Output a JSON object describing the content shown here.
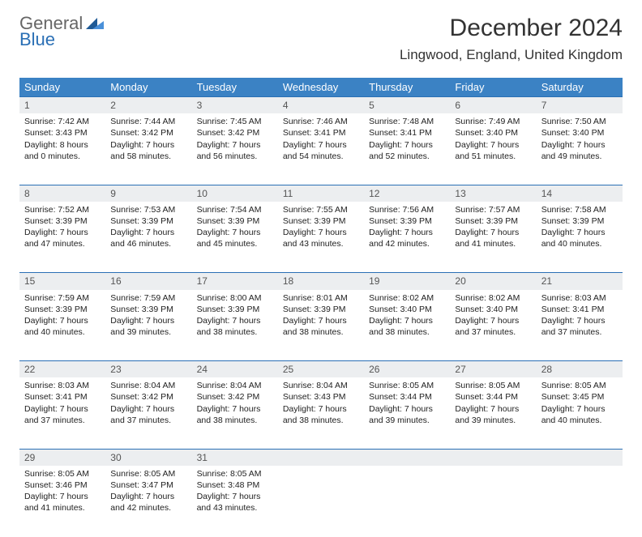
{
  "logo": {
    "word1": "General",
    "word2": "Blue"
  },
  "title": "December 2024",
  "location": "Lingwood, England, United Kingdom",
  "columns": [
    "Sunday",
    "Monday",
    "Tuesday",
    "Wednesday",
    "Thursday",
    "Friday",
    "Saturday"
  ],
  "colors": {
    "header_bg": "#3b82c4",
    "header_text": "#ffffff",
    "rule": "#2a6fb5",
    "daynum_bg": "#eceef0",
    "logo_gray": "#666666",
    "logo_blue": "#2a6fb5",
    "logo_tri_dark": "#1f5a96",
    "logo_tri_light": "#4a90d9"
  },
  "typography": {
    "title_fontsize": 30,
    "location_fontsize": 17,
    "colhead_fontsize": 13,
    "daynum_fontsize": 12,
    "body_fontsize": 10.5
  },
  "weeks": [
    [
      {
        "n": "1",
        "sr": "Sunrise: 7:42 AM",
        "ss": "Sunset: 3:43 PM",
        "d1": "Daylight: 8 hours",
        "d2": "and 0 minutes."
      },
      {
        "n": "2",
        "sr": "Sunrise: 7:44 AM",
        "ss": "Sunset: 3:42 PM",
        "d1": "Daylight: 7 hours",
        "d2": "and 58 minutes."
      },
      {
        "n": "3",
        "sr": "Sunrise: 7:45 AM",
        "ss": "Sunset: 3:42 PM",
        "d1": "Daylight: 7 hours",
        "d2": "and 56 minutes."
      },
      {
        "n": "4",
        "sr": "Sunrise: 7:46 AM",
        "ss": "Sunset: 3:41 PM",
        "d1": "Daylight: 7 hours",
        "d2": "and 54 minutes."
      },
      {
        "n": "5",
        "sr": "Sunrise: 7:48 AM",
        "ss": "Sunset: 3:41 PM",
        "d1": "Daylight: 7 hours",
        "d2": "and 52 minutes."
      },
      {
        "n": "6",
        "sr": "Sunrise: 7:49 AM",
        "ss": "Sunset: 3:40 PM",
        "d1": "Daylight: 7 hours",
        "d2": "and 51 minutes."
      },
      {
        "n": "7",
        "sr": "Sunrise: 7:50 AM",
        "ss": "Sunset: 3:40 PM",
        "d1": "Daylight: 7 hours",
        "d2": "and 49 minutes."
      }
    ],
    [
      {
        "n": "8",
        "sr": "Sunrise: 7:52 AM",
        "ss": "Sunset: 3:39 PM",
        "d1": "Daylight: 7 hours",
        "d2": "and 47 minutes."
      },
      {
        "n": "9",
        "sr": "Sunrise: 7:53 AM",
        "ss": "Sunset: 3:39 PM",
        "d1": "Daylight: 7 hours",
        "d2": "and 46 minutes."
      },
      {
        "n": "10",
        "sr": "Sunrise: 7:54 AM",
        "ss": "Sunset: 3:39 PM",
        "d1": "Daylight: 7 hours",
        "d2": "and 45 minutes."
      },
      {
        "n": "11",
        "sr": "Sunrise: 7:55 AM",
        "ss": "Sunset: 3:39 PM",
        "d1": "Daylight: 7 hours",
        "d2": "and 43 minutes."
      },
      {
        "n": "12",
        "sr": "Sunrise: 7:56 AM",
        "ss": "Sunset: 3:39 PM",
        "d1": "Daylight: 7 hours",
        "d2": "and 42 minutes."
      },
      {
        "n": "13",
        "sr": "Sunrise: 7:57 AM",
        "ss": "Sunset: 3:39 PM",
        "d1": "Daylight: 7 hours",
        "d2": "and 41 minutes."
      },
      {
        "n": "14",
        "sr": "Sunrise: 7:58 AM",
        "ss": "Sunset: 3:39 PM",
        "d1": "Daylight: 7 hours",
        "d2": "and 40 minutes."
      }
    ],
    [
      {
        "n": "15",
        "sr": "Sunrise: 7:59 AM",
        "ss": "Sunset: 3:39 PM",
        "d1": "Daylight: 7 hours",
        "d2": "and 40 minutes."
      },
      {
        "n": "16",
        "sr": "Sunrise: 7:59 AM",
        "ss": "Sunset: 3:39 PM",
        "d1": "Daylight: 7 hours",
        "d2": "and 39 minutes."
      },
      {
        "n": "17",
        "sr": "Sunrise: 8:00 AM",
        "ss": "Sunset: 3:39 PM",
        "d1": "Daylight: 7 hours",
        "d2": "and 38 minutes."
      },
      {
        "n": "18",
        "sr": "Sunrise: 8:01 AM",
        "ss": "Sunset: 3:39 PM",
        "d1": "Daylight: 7 hours",
        "d2": "and 38 minutes."
      },
      {
        "n": "19",
        "sr": "Sunrise: 8:02 AM",
        "ss": "Sunset: 3:40 PM",
        "d1": "Daylight: 7 hours",
        "d2": "and 38 minutes."
      },
      {
        "n": "20",
        "sr": "Sunrise: 8:02 AM",
        "ss": "Sunset: 3:40 PM",
        "d1": "Daylight: 7 hours",
        "d2": "and 37 minutes."
      },
      {
        "n": "21",
        "sr": "Sunrise: 8:03 AM",
        "ss": "Sunset: 3:41 PM",
        "d1": "Daylight: 7 hours",
        "d2": "and 37 minutes."
      }
    ],
    [
      {
        "n": "22",
        "sr": "Sunrise: 8:03 AM",
        "ss": "Sunset: 3:41 PM",
        "d1": "Daylight: 7 hours",
        "d2": "and 37 minutes."
      },
      {
        "n": "23",
        "sr": "Sunrise: 8:04 AM",
        "ss": "Sunset: 3:42 PM",
        "d1": "Daylight: 7 hours",
        "d2": "and 37 minutes."
      },
      {
        "n": "24",
        "sr": "Sunrise: 8:04 AM",
        "ss": "Sunset: 3:42 PM",
        "d1": "Daylight: 7 hours",
        "d2": "and 38 minutes."
      },
      {
        "n": "25",
        "sr": "Sunrise: 8:04 AM",
        "ss": "Sunset: 3:43 PM",
        "d1": "Daylight: 7 hours",
        "d2": "and 38 minutes."
      },
      {
        "n": "26",
        "sr": "Sunrise: 8:05 AM",
        "ss": "Sunset: 3:44 PM",
        "d1": "Daylight: 7 hours",
        "d2": "and 39 minutes."
      },
      {
        "n": "27",
        "sr": "Sunrise: 8:05 AM",
        "ss": "Sunset: 3:44 PM",
        "d1": "Daylight: 7 hours",
        "d2": "and 39 minutes."
      },
      {
        "n": "28",
        "sr": "Sunrise: 8:05 AM",
        "ss": "Sunset: 3:45 PM",
        "d1": "Daylight: 7 hours",
        "d2": "and 40 minutes."
      }
    ],
    [
      {
        "n": "29",
        "sr": "Sunrise: 8:05 AM",
        "ss": "Sunset: 3:46 PM",
        "d1": "Daylight: 7 hours",
        "d2": "and 41 minutes."
      },
      {
        "n": "30",
        "sr": "Sunrise: 8:05 AM",
        "ss": "Sunset: 3:47 PM",
        "d1": "Daylight: 7 hours",
        "d2": "and 42 minutes."
      },
      {
        "n": "31",
        "sr": "Sunrise: 8:05 AM",
        "ss": "Sunset: 3:48 PM",
        "d1": "Daylight: 7 hours",
        "d2": "and 43 minutes."
      },
      {
        "empty": true
      },
      {
        "empty": true
      },
      {
        "empty": true
      },
      {
        "empty": true
      }
    ]
  ]
}
